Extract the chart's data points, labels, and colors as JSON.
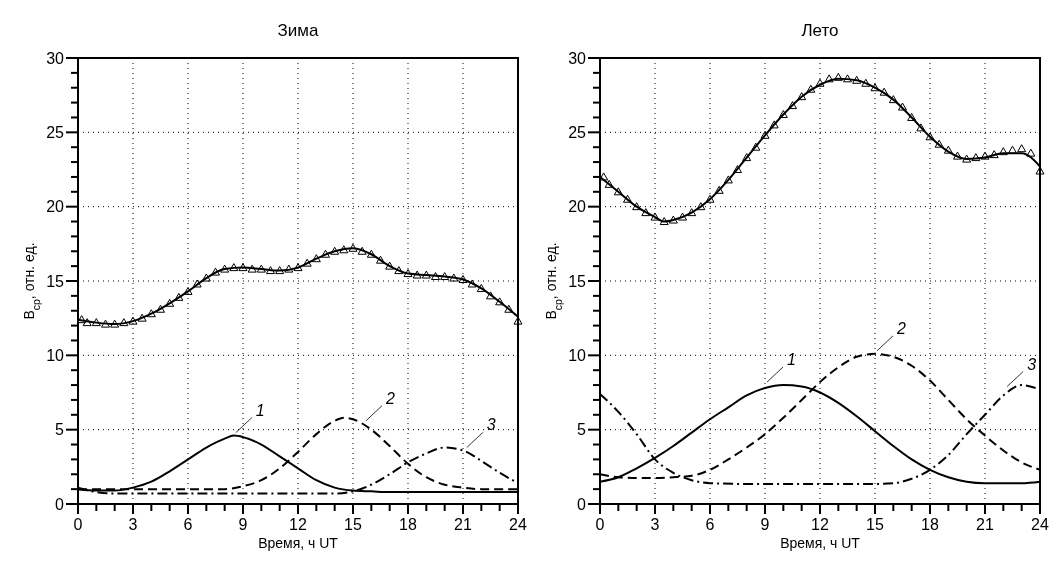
{
  "chart_data": [
    {
      "type": "line",
      "title": "Зима",
      "xlabel": "Время, ч UT",
      "ylabel": "B$_{ср}$, отн. ед.",
      "xlim": [
        0,
        24
      ],
      "ylim": [
        0,
        30
      ],
      "xticks": [
        0,
        {
          "value": 1,
          "label": null
        },
        {
          "value": 2,
          "label": null
        },
        3,
        {
          "value": 4,
          "label": null
        },
        {
          "value": 5,
          "label": null
        },
        6,
        {
          "value": 7,
          "label": null
        },
        {
          "value": 8,
          "label": null
        },
        9,
        {
          "value": 10,
          "label": null
        },
        {
          "value": 11,
          "label": null
        },
        12,
        {
          "value": 13,
          "label": null
        },
        {
          "value": 14,
          "label": null
        },
        15,
        {
          "value": 16,
          "label": null
        },
        {
          "value": 17,
          "label": null
        },
        18,
        {
          "value": 19,
          "label": null
        },
        {
          "value": 20,
          "label": null
        },
        21,
        {
          "value": 22,
          "label": null
        },
        {
          "value": 23,
          "label": null
        },
        24
      ],
      "yticks": [
        0,
        {
          "value": 1,
          "label": null
        },
        {
          "value": 2,
          "label": null
        },
        {
          "value": 3,
          "label": null
        },
        {
          "value": 4,
          "label": null
        },
        5,
        {
          "value": 6,
          "label": null
        },
        {
          "value": 7,
          "label": null
        },
        {
          "value": 8,
          "label": null
        },
        {
          "value": 9,
          "label": null
        },
        10,
        {
          "value": 11,
          "label": null
        },
        {
          "value": 12,
          "label": null
        },
        {
          "value": 13,
          "label": null
        },
        {
          "value": 14,
          "label": null
        },
        15,
        {
          "value": 16,
          "label": null
        },
        {
          "value": 17,
          "label": null
        },
        {
          "value": 18,
          "label": null
        },
        {
          "value": 19,
          "label": null
        },
        20,
        {
          "value": 21,
          "label": null
        },
        {
          "value": 22,
          "label": null
        },
        {
          "value": 23,
          "label": null
        },
        {
          "value": 24,
          "label": null
        },
        25,
        {
          "value": 26,
          "label": null
        },
        {
          "value": 27,
          "label": null
        },
        {
          "value": 28,
          "label": null
        },
        {
          "value": 29,
          "label": null
        },
        30
      ],
      "grid": true,
      "series": [
        {
          "type": "scatter",
          "marker": "triangle",
          "color": "#000000",
          "x": [
            0.2,
            0.5,
            1,
            1.5,
            2,
            2.5,
            3,
            3.5,
            4,
            4.5,
            5,
            5.5,
            6,
            6.5,
            7,
            7.5,
            8,
            8.5,
            9,
            9.5,
            10,
            10.5,
            11,
            11.5,
            12,
            12.5,
            13,
            13.5,
            14,
            14.5,
            15,
            15.5,
            16,
            16.5,
            17,
            17.5,
            18,
            18.5,
            19,
            19.5,
            20,
            20.5,
            21,
            21.5,
            22,
            22.5,
            23,
            23.5,
            24
          ],
          "values": [
            12.4,
            12.2,
            12.2,
            12.1,
            12.1,
            12.2,
            12.3,
            12.5,
            12.8,
            13.1,
            13.5,
            13.9,
            14.3,
            14.8,
            15.2,
            15.6,
            15.8,
            15.9,
            15.9,
            15.8,
            15.8,
            15.7,
            15.7,
            15.8,
            15.9,
            16.2,
            16.5,
            16.8,
            17.0,
            17.1,
            17.2,
            17.0,
            16.8,
            16.4,
            16.0,
            15.7,
            15.5,
            15.4,
            15.4,
            15.3,
            15.3,
            15.2,
            15.1,
            14.8,
            14.5,
            14.0,
            13.6,
            13.1,
            12.3
          ]
        },
        {
          "type": "line",
          "line_style": "solid",
          "color": "#000000",
          "x": [
            0,
            1,
            2,
            3,
            4,
            5,
            6,
            7,
            8,
            9,
            10,
            11,
            12,
            13,
            14,
            15,
            16,
            17,
            18,
            19,
            20,
            21,
            22,
            23,
            24
          ],
          "values": [
            12.4,
            12.2,
            12.1,
            12.3,
            12.8,
            13.5,
            14.3,
            15.2,
            15.8,
            15.9,
            15.8,
            15.7,
            15.9,
            16.5,
            17.0,
            17.2,
            16.8,
            16.0,
            15.5,
            15.4,
            15.3,
            15.1,
            14.5,
            13.6,
            12.6
          ]
        },
        {
          "type": "line",
          "line_style": "solid",
          "color": "#000000",
          "x": [
            0,
            1,
            2,
            3,
            4,
            5,
            6,
            7,
            8,
            8.5,
            9,
            10,
            11,
            12,
            13,
            14,
            15,
            16,
            17,
            18,
            20,
            22,
            24
          ],
          "values": [
            1.0,
            0.9,
            0.9,
            1.1,
            1.5,
            2.2,
            3.0,
            3.8,
            4.4,
            4.6,
            4.5,
            4.0,
            3.2,
            2.4,
            1.6,
            1.1,
            0.9,
            0.85,
            0.8,
            0.8,
            0.8,
            0.8,
            0.8
          ]
        },
        {
          "type": "line",
          "line_style": "dashed",
          "color": "#000000",
          "x": [
            0,
            2,
            4,
            6,
            8,
            9,
            10,
            11,
            12,
            13,
            14,
            14.5,
            15,
            16,
            17,
            18,
            19,
            20,
            21,
            22,
            24
          ],
          "values": [
            1.0,
            1.0,
            1.0,
            1.0,
            1.0,
            1.2,
            1.6,
            2.4,
            3.5,
            4.7,
            5.6,
            5.8,
            5.7,
            5.0,
            3.9,
            2.7,
            1.8,
            1.3,
            1.1,
            1.0,
            1.0
          ]
        },
        {
          "type": "line",
          "line_style": "dashdot",
          "color": "#000000",
          "x": [
            0,
            1,
            2,
            4,
            6,
            8,
            10,
            12,
            14,
            15,
            16,
            17,
            18,
            19,
            20,
            21,
            22,
            23,
            24
          ],
          "values": [
            1.1,
            0.8,
            0.7,
            0.7,
            0.7,
            0.7,
            0.7,
            0.7,
            0.7,
            0.85,
            1.3,
            2.0,
            2.8,
            3.4,
            3.8,
            3.6,
            2.9,
            2.1,
            1.4
          ]
        }
      ],
      "annotations": [
        {
          "text": "1",
          "x": 8.5,
          "y": 4.6
        },
        {
          "text": "2",
          "x": 15.6,
          "y": 5.4
        },
        {
          "text": "3",
          "x": 21.1,
          "y": 3.6
        }
      ]
    },
    {
      "type": "line",
      "title": "Лето",
      "xlabel": "Время, ч UT",
      "ylabel": "B$_{ср}$, отн. ед.",
      "xlim": [
        0,
        24
      ],
      "ylim": [
        0,
        30
      ],
      "xticks": [
        0,
        {
          "value": 1,
          "label": null
        },
        {
          "value": 2,
          "label": null
        },
        3,
        {
          "value": 4,
          "label": null
        },
        {
          "value": 5,
          "label": null
        },
        6,
        {
          "value": 7,
          "label": null
        },
        {
          "value": 8,
          "label": null
        },
        9,
        {
          "value": 10,
          "label": null
        },
        {
          "value": 11,
          "label": null
        },
        12,
        {
          "value": 13,
          "label": null
        },
        {
          "value": 14,
          "label": null
        },
        15,
        {
          "value": 16,
          "label": null
        },
        {
          "value": 17,
          "label": null
        },
        18,
        {
          "value": 19,
          "label": null
        },
        {
          "value": 20,
          "label": null
        },
        21,
        {
          "value": 22,
          "label": null
        },
        {
          "value": 23,
          "label": null
        },
        24
      ],
      "yticks": [
        0,
        {
          "value": 1,
          "label": null
        },
        {
          "value": 2,
          "label": null
        },
        {
          "value": 3,
          "label": null
        },
        {
          "value": 4,
          "label": null
        },
        5,
        {
          "value": 6,
          "label": null
        },
        {
          "value": 7,
          "label": null
        },
        {
          "value": 8,
          "label": null
        },
        {
          "value": 9,
          "label": null
        },
        10,
        {
          "value": 11,
          "label": null
        },
        {
          "value": 12,
          "label": null
        },
        {
          "value": 13,
          "label": null
        },
        {
          "value": 14,
          "label": null
        },
        15,
        {
          "value": 16,
          "label": null
        },
        {
          "value": 17,
          "label": null
        },
        {
          "value": 18,
          "label": null
        },
        {
          "value": 19,
          "label": null
        },
        20,
        {
          "value": 21,
          "label": null
        },
        {
          "value": 22,
          "label": null
        },
        {
          "value": 23,
          "label": null
        },
        {
          "value": 24,
          "label": null
        },
        25,
        {
          "value": 26,
          "label": null
        },
        {
          "value": 27,
          "label": null
        },
        {
          "value": 28,
          "label": null
        },
        {
          "value": 29,
          "label": null
        },
        30
      ],
      "grid": true,
      "series": [
        {
          "type": "scatter",
          "marker": "triangle",
          "color": "#000000",
          "x": [
            0.2,
            0.5,
            1,
            1.5,
            2,
            2.5,
            3,
            3.5,
            4,
            4.5,
            5,
            5.5,
            6,
            6.5,
            7,
            7.5,
            8,
            8.5,
            9,
            9.5,
            10,
            10.5,
            11,
            11.5,
            12,
            12.5,
            13,
            13.5,
            14,
            14.5,
            15,
            15.5,
            16,
            16.5,
            17,
            17.5,
            18,
            18.5,
            19,
            19.5,
            20,
            20.5,
            21,
            21.5,
            22,
            22.5,
            23,
            23.5,
            24
          ],
          "values": [
            22.0,
            21.5,
            21.0,
            20.5,
            20.0,
            19.6,
            19.3,
            19.0,
            19.1,
            19.3,
            19.6,
            20.0,
            20.5,
            21.1,
            21.8,
            22.5,
            23.3,
            24.0,
            24.8,
            25.5,
            26.2,
            26.8,
            27.4,
            27.9,
            28.3,
            28.6,
            28.7,
            28.6,
            28.5,
            28.3,
            28.0,
            27.7,
            27.2,
            26.7,
            26.0,
            25.3,
            24.7,
            24.2,
            23.8,
            23.4,
            23.2,
            23.3,
            23.4,
            23.5,
            23.7,
            23.8,
            23.9,
            23.6,
            22.4
          ]
        },
        {
          "type": "line",
          "line_style": "solid",
          "color": "#000000",
          "x": [
            0,
            1,
            2,
            3,
            3.5,
            4,
            5,
            6,
            7,
            8,
            9,
            10,
            11,
            12,
            13,
            14,
            15,
            16,
            17,
            18,
            19,
            20,
            21,
            22,
            23,
            24
          ],
          "values": [
            22.0,
            21.0,
            20.0,
            19.3,
            19.0,
            19.1,
            19.6,
            20.5,
            21.8,
            23.3,
            24.8,
            26.2,
            27.4,
            28.2,
            28.6,
            28.5,
            28.0,
            27.2,
            26.0,
            24.7,
            23.7,
            23.2,
            23.3,
            23.6,
            23.6,
            22.7
          ]
        },
        {
          "type": "line",
          "line_style": "solid",
          "color": "#000000",
          "x": [
            0,
            1,
            2,
            3,
            4,
            5,
            6,
            7,
            8,
            9,
            10,
            11,
            12,
            13,
            14,
            15,
            16,
            17,
            18,
            19,
            20,
            21,
            22,
            23,
            24
          ],
          "values": [
            1.5,
            1.8,
            2.4,
            3.1,
            3.9,
            4.8,
            5.7,
            6.5,
            7.3,
            7.8,
            8.0,
            7.9,
            7.5,
            6.8,
            5.9,
            4.9,
            3.9,
            3.0,
            2.3,
            1.8,
            1.5,
            1.4,
            1.4,
            1.4,
            1.5
          ]
        },
        {
          "type": "line",
          "line_style": "dashed",
          "color": "#000000",
          "x": [
            0,
            1,
            2,
            3,
            4,
            5,
            6,
            7,
            8,
            9,
            10,
            11,
            12,
            13,
            14,
            15,
            16,
            17,
            18,
            19,
            20,
            21,
            22,
            23,
            24
          ],
          "values": [
            2.0,
            1.8,
            1.75,
            1.75,
            1.8,
            1.9,
            2.3,
            3.0,
            3.8,
            4.7,
            5.8,
            7.0,
            8.2,
            9.2,
            9.9,
            10.1,
            9.9,
            9.3,
            8.3,
            7.0,
            5.7,
            4.6,
            3.6,
            2.8,
            2.3
          ]
        },
        {
          "type": "line",
          "line_style": "dashdot",
          "color": "#000000",
          "x": [
            0,
            1,
            2,
            3,
            4,
            5,
            6,
            8,
            10,
            12,
            14,
            15,
            16,
            17,
            18,
            19,
            20,
            21,
            22,
            23,
            24
          ],
          "values": [
            7.4,
            6.2,
            4.7,
            3.0,
            2.1,
            1.6,
            1.4,
            1.35,
            1.35,
            1.35,
            1.35,
            1.35,
            1.4,
            1.7,
            2.3,
            3.3,
            4.7,
            6.0,
            7.3,
            8.0,
            7.7
          ]
        }
      ],
      "annotations": [
        {
          "text": "1",
          "x": 9,
          "y": 8.0
        },
        {
          "text": "2",
          "x": 15,
          "y": 10.1
        },
        {
          "text": "3",
          "x": 22.1,
          "y": 7.7
        }
      ]
    }
  ]
}
